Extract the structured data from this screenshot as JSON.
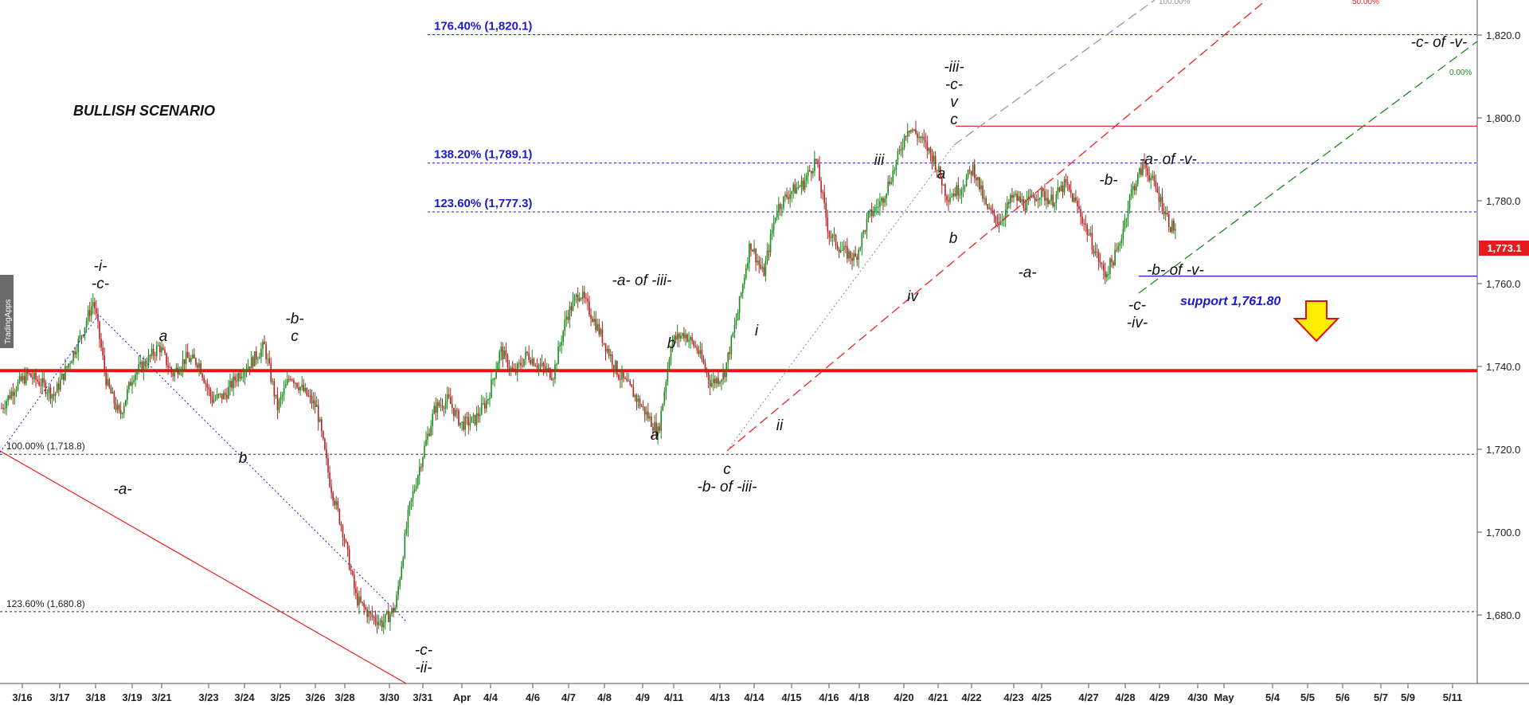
{
  "chart_data": {
    "type": "candlestick",
    "title": "BULLISH SCENARIO",
    "ylim": [
      1665,
      1830
    ],
    "y_ticks": [
      "1,680.0",
      "1,700.0",
      "1,720.0",
      "1,740.0",
      "1,760.0",
      "1,780.0",
      "1,800.0",
      "1,820.0"
    ],
    "y_tick_values": [
      1680,
      1700,
      1720,
      1740,
      1760,
      1780,
      1800,
      1820
    ],
    "x_ticks": [
      "3/16",
      "3/17",
      "3/18",
      "3/19",
      "3/21",
      "3/23",
      "3/24",
      "3/25",
      "3/26",
      "3/28",
      "3/30",
      "3/31",
      "Apr",
      "4/4",
      "4/6",
      "4/7",
      "4/8",
      "4/9",
      "4/11",
      "4/13",
      "4/14",
      "4/15",
      "4/16",
      "4/18",
      "4/20",
      "4/21",
      "4/22",
      "4/23",
      "4/25",
      "4/27",
      "4/28",
      "4/29",
      "4/30",
      "May",
      "5/4",
      "5/5",
      "5/6",
      "5/7",
      "5/9",
      "5/11"
    ],
    "last_price": 1773.1,
    "last_price_label": "1,773.1",
    "price_path": [
      [
        0,
        1730
      ],
      [
        2,
        1735
      ],
      [
        4,
        1738
      ],
      [
        6,
        1736
      ],
      [
        8,
        1733
      ],
      [
        10,
        1740
      ],
      [
        12,
        1747
      ],
      [
        14,
        1756
      ],
      [
        16,
        1736
      ],
      [
        18,
        1728
      ],
      [
        20,
        1738
      ],
      [
        22,
        1741
      ],
      [
        24,
        1745
      ],
      [
        26,
        1738
      ],
      [
        28,
        1742
      ],
      [
        30,
        1741
      ],
      [
        32,
        1732
      ],
      [
        34,
        1733
      ],
      [
        36,
        1738
      ],
      [
        38,
        1741
      ],
      [
        40,
        1745
      ],
      [
        42,
        1730
      ],
      [
        44,
        1738
      ],
      [
        46,
        1734
      ],
      [
        48,
        1730
      ],
      [
        50,
        1712
      ],
      [
        52,
        1700
      ],
      [
        54,
        1684
      ],
      [
        56,
        1680
      ],
      [
        58,
        1678
      ],
      [
        60,
        1682
      ],
      [
        62,
        1705
      ],
      [
        64,
        1718
      ],
      [
        66,
        1730
      ],
      [
        68,
        1732
      ],
      [
        70,
        1726
      ],
      [
        72,
        1727
      ],
      [
        74,
        1732
      ],
      [
        76,
        1744
      ],
      [
        78,
        1738
      ],
      [
        80,
        1743
      ],
      [
        82,
        1740
      ],
      [
        84,
        1738
      ],
      [
        86,
        1752
      ],
      [
        88,
        1758
      ],
      [
        90,
        1752
      ],
      [
        92,
        1745
      ],
      [
        94,
        1738
      ],
      [
        96,
        1734
      ],
      [
        98,
        1729
      ],
      [
        100,
        1724
      ],
      [
        102,
        1746
      ],
      [
        104,
        1748
      ],
      [
        106,
        1744
      ],
      [
        108,
        1736
      ],
      [
        110,
        1738
      ],
      [
        112,
        1752
      ],
      [
        114,
        1770
      ],
      [
        116,
        1762
      ],
      [
        118,
        1778
      ],
      [
        120,
        1782
      ],
      [
        122,
        1784
      ],
      [
        124,
        1790
      ],
      [
        126,
        1772
      ],
      [
        128,
        1768
      ],
      [
        130,
        1766
      ],
      [
        132,
        1776
      ],
      [
        134,
        1780
      ],
      [
        136,
        1788
      ],
      [
        138,
        1798
      ],
      [
        140,
        1795
      ],
      [
        142,
        1790
      ],
      [
        144,
        1781
      ],
      [
        146,
        1783
      ],
      [
        148,
        1788
      ],
      [
        150,
        1778
      ],
      [
        152,
        1775
      ],
      [
        154,
        1781
      ],
      [
        156,
        1779
      ],
      [
        158,
        1782
      ],
      [
        160,
        1780
      ],
      [
        162,
        1784
      ],
      [
        164,
        1778
      ],
      [
        166,
        1770
      ],
      [
        168,
        1762
      ],
      [
        170,
        1768
      ],
      [
        172,
        1782
      ],
      [
        174,
        1789
      ],
      [
        176,
        1782
      ],
      [
        178,
        1774
      ],
      [
        179,
        1773
      ]
    ],
    "fib_levels": [
      {
        "label": "176.40% (1,820.1)",
        "value": 1820.1
      },
      {
        "label": "138.20% (1,789.1)",
        "value": 1789.1
      },
      {
        "label": "123.60% (1,777.3)",
        "value": 1777.3
      },
      {
        "label": "100.00% (1,718.8)",
        "value": 1718.8
      },
      {
        "label": "123.60% (1,680.8)",
        "value": 1680.8
      }
    ],
    "resistance_line": {
      "value": 1739
    },
    "top_red_line": {
      "value": 1798
    },
    "support_line": {
      "value": 1761.8,
      "label": "support 1,761.80"
    },
    "channel_labels": [
      "100.00%",
      "50.00%",
      "0.00%"
    ],
    "wave_labels": [
      {
        "lines": [
          "-i-",
          "-c-"
        ]
      },
      {
        "lines": [
          "a"
        ]
      },
      {
        "lines": [
          "-a-"
        ]
      },
      {
        "lines": [
          "b"
        ]
      },
      {
        "lines": [
          "-b-",
          "c"
        ]
      },
      {
        "lines": [
          "-c-",
          "-ii-"
        ]
      },
      {
        "lines": [
          "-a- of -iii-"
        ]
      },
      {
        "lines": [
          "b"
        ]
      },
      {
        "lines": [
          "a"
        ]
      },
      {
        "lines": [
          "c",
          "-b- of -iii-"
        ]
      },
      {
        "lines": [
          "i"
        ]
      },
      {
        "lines": [
          "ii"
        ]
      },
      {
        "lines": [
          "iii"
        ]
      },
      {
        "lines": [
          "iv"
        ]
      },
      {
        "lines": [
          "a"
        ]
      },
      {
        "lines": [
          "b"
        ]
      },
      {
        "lines": [
          "-iii-",
          "-c-",
          "v",
          "c"
        ]
      },
      {
        "lines": [
          "-a-"
        ]
      },
      {
        "lines": [
          "-b-"
        ]
      },
      {
        "lines": [
          "-a- of -v-"
        ]
      },
      {
        "lines": [
          "-b- of -v-"
        ]
      },
      {
        "lines": [
          "-c-",
          "-iv-"
        ]
      },
      {
        "lines": [
          "-c- of -v-"
        ]
      }
    ],
    "watermark": "TradingApps",
    "grid": false
  },
  "colors": {
    "up": "#1a8a1a",
    "down": "#b22222",
    "fib_blue": "#1a1ad6",
    "red_line": "#ee1111",
    "arrow_fill": "#ffee00",
    "arrow_stroke": "#dd1111",
    "last_price_bg": "#e51c1c"
  }
}
